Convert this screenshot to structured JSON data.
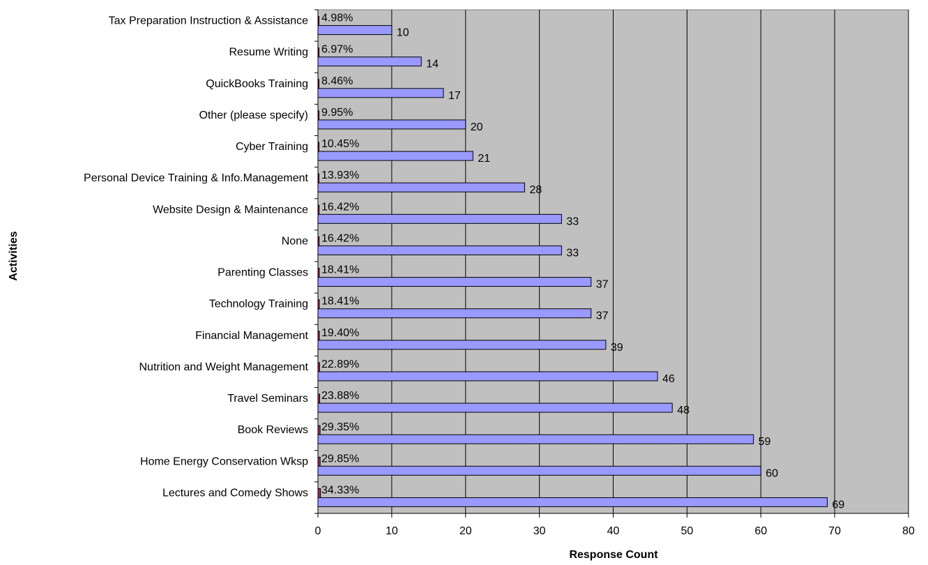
{
  "chart_data": {
    "type": "bar",
    "orientation": "horizontal",
    "title": "",
    "xlabel": "Response Count",
    "ylabel": "Activities",
    "xlim": [
      0,
      80
    ],
    "xticks": [
      0,
      10,
      20,
      30,
      40,
      50,
      60,
      70,
      80
    ],
    "grid": true,
    "legend": "none",
    "colors": {
      "plot_background": "#c0c0c0",
      "count_bar": "#9999ff",
      "percent_bar": "#993366",
      "gridline": "#000000"
    },
    "categories": [
      "Tax Preparation Instruction & Assistance",
      "Resume Writing",
      "QuickBooks Training",
      "Other (please specify)",
      "Cyber Training",
      "Personal Device Training & Info.Management",
      "Website Design & Maintenance",
      "None",
      "Parenting Classes",
      "Technology Training",
      "Financial Management",
      "Nutrition and Weight Management",
      "Travel Seminars",
      "Book Reviews",
      "Home Energy Conservation Wksp",
      "Lectures and Comedy Shows"
    ],
    "series": [
      {
        "values": [
          10,
          14,
          17,
          20,
          21,
          28,
          33,
          33,
          37,
          37,
          39,
          46,
          48,
          59,
          60,
          69
        ],
        "labels": [
          "10",
          "14",
          "17",
          "20",
          "21",
          "28",
          "33",
          "33",
          "37",
          "37",
          "39",
          "46",
          "48",
          "59",
          "60",
          "69"
        ]
      },
      {
        "values": [
          0.0498,
          0.0697,
          0.0846,
          0.0995,
          0.1045,
          0.1393,
          0.1642,
          0.1642,
          0.1841,
          0.1841,
          0.194,
          0.2289,
          0.2388,
          0.2935,
          0.2985,
          0.3433
        ],
        "labels": [
          "4.98%",
          "6.97%",
          "8.46%",
          "9.95%",
          "10.45%",
          "13.93%",
          "16.42%",
          "16.42%",
          "18.41%",
          "18.41%",
          "19.40%",
          "22.89%",
          "23.88%",
          "29.35%",
          "29.85%",
          "34.33%"
        ]
      }
    ]
  }
}
